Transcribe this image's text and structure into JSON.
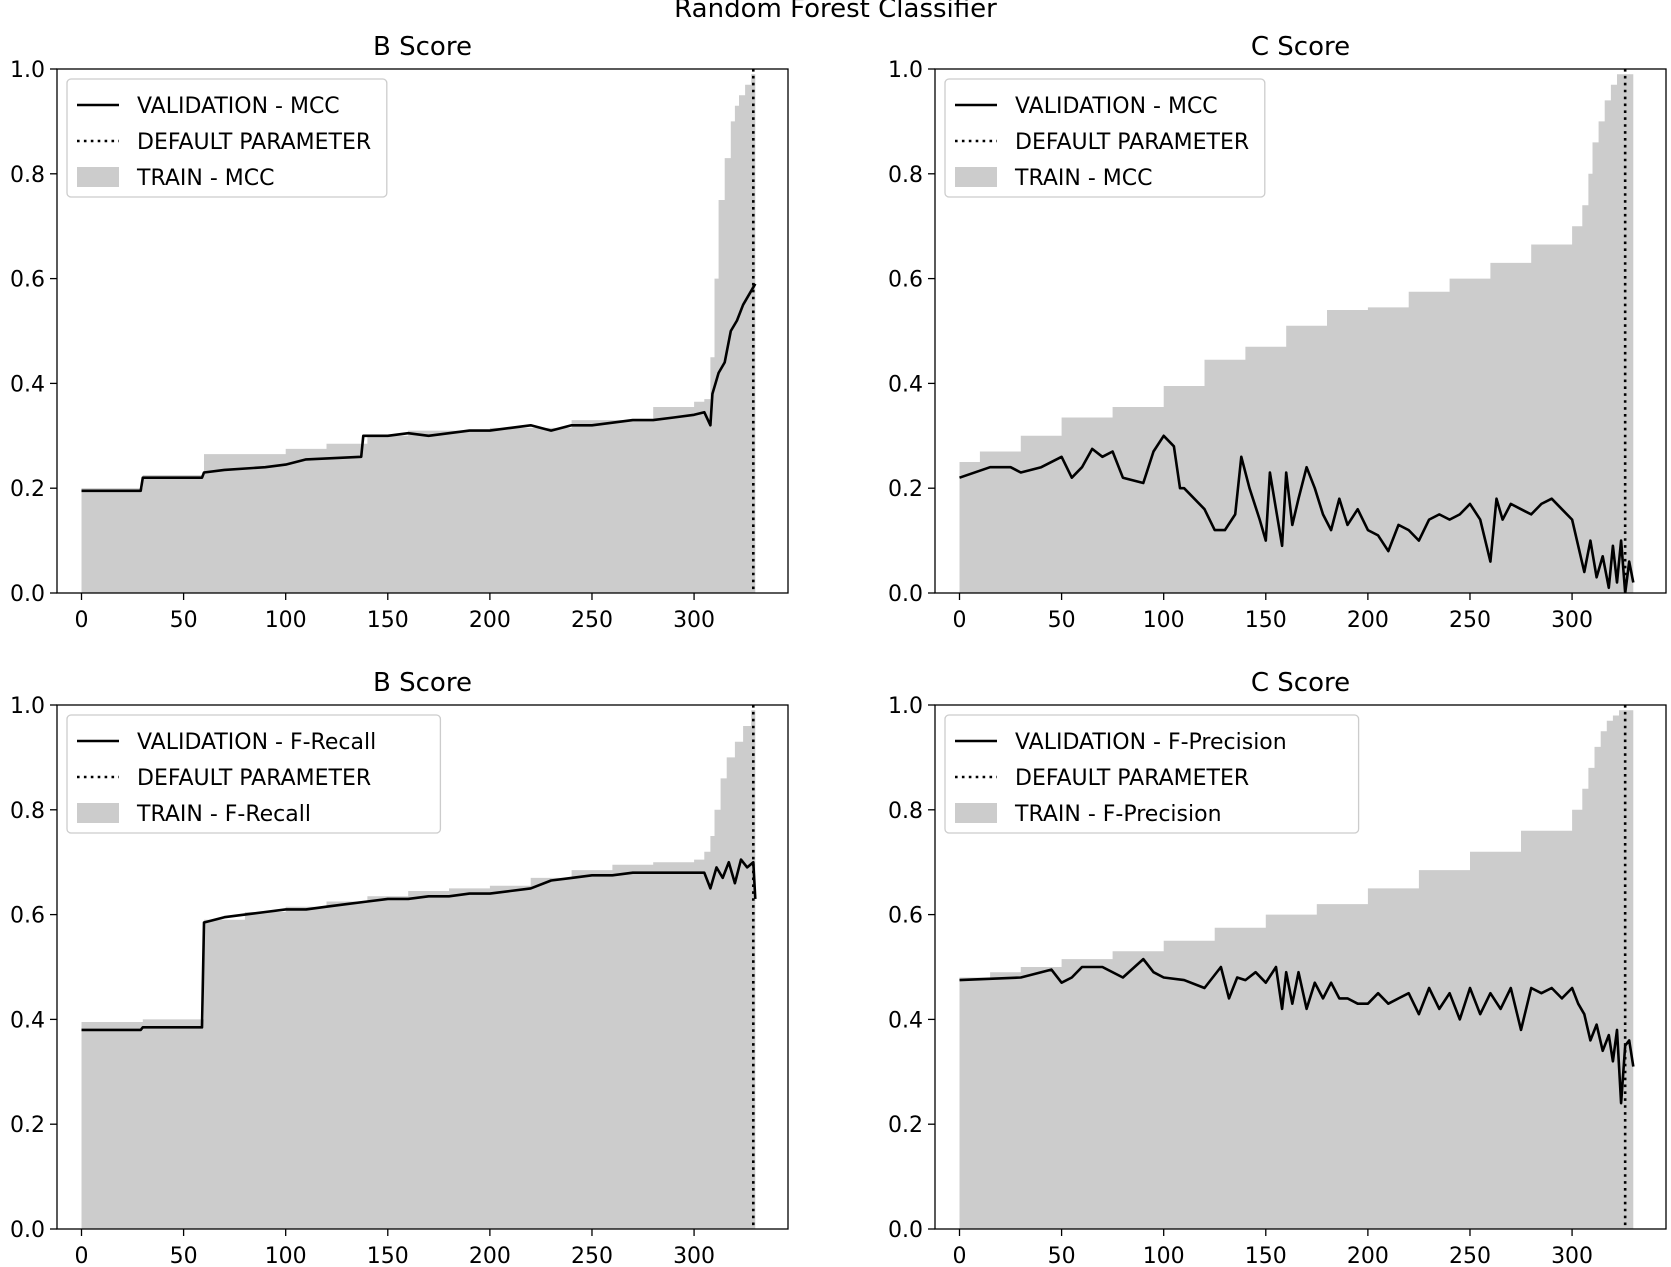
{
  "figure": {
    "suptitle": "Random Forest Classifier"
  },
  "colors": {
    "validation_line": "#000000",
    "default_line": "#000000",
    "train_fill": "#cccccc"
  },
  "chart_data": [
    {
      "type": "line",
      "title": "B Score",
      "xlabel": "",
      "ylabel": "",
      "xlim": [
        -12,
        346
      ],
      "ylim": [
        0,
        1.0
      ],
      "xticks": [
        "0",
        "50",
        "100",
        "150",
        "200",
        "250",
        "300"
      ],
      "yticks": [
        "0.0",
        "0.2",
        "0.4",
        "0.6",
        "0.8",
        "1.0"
      ],
      "legend": {
        "position": "top-left",
        "entries": [
          "VALIDATION - MCC",
          "DEFAULT PARAMETER",
          "TRAIN - MCC"
        ]
      },
      "default_parameter_x": 329,
      "series": [
        {
          "name": "TRAIN - MCC",
          "kind": "area",
          "x": [
            0,
            29,
            30,
            59,
            60,
            100,
            120,
            140,
            160,
            200,
            240,
            280,
            300,
            305,
            308,
            310,
            312,
            315,
            318,
            320,
            322,
            325,
            328,
            330
          ],
          "y": [
            0.2,
            0.2,
            0.225,
            0.225,
            0.265,
            0.275,
            0.285,
            0.3,
            0.31,
            0.315,
            0.33,
            0.355,
            0.365,
            0.37,
            0.45,
            0.6,
            0.75,
            0.83,
            0.9,
            0.93,
            0.95,
            0.97,
            0.99,
            0.99
          ]
        },
        {
          "name": "VALIDATION - MCC",
          "kind": "line",
          "x": [
            0,
            29,
            30,
            59,
            60,
            70,
            90,
            100,
            110,
            137,
            138,
            150,
            160,
            170,
            180,
            190,
            200,
            210,
            220,
            230,
            240,
            250,
            260,
            270,
            280,
            290,
            300,
            305,
            308,
            309,
            312,
            315,
            318,
            321,
            324,
            327,
            330
          ],
          "y": [
            0.195,
            0.195,
            0.22,
            0.22,
            0.23,
            0.235,
            0.24,
            0.245,
            0.255,
            0.26,
            0.3,
            0.3,
            0.305,
            0.3,
            0.305,
            0.31,
            0.31,
            0.315,
            0.32,
            0.31,
            0.32,
            0.32,
            0.325,
            0.33,
            0.33,
            0.335,
            0.34,
            0.345,
            0.32,
            0.38,
            0.42,
            0.44,
            0.5,
            0.52,
            0.55,
            0.57,
            0.59
          ]
        }
      ]
    },
    {
      "type": "line",
      "title": "C Score",
      "xlabel": "",
      "ylabel": "",
      "xlim": [
        -12,
        346
      ],
      "ylim": [
        0,
        1.0
      ],
      "xticks": [
        "0",
        "50",
        "100",
        "150",
        "200",
        "250",
        "300"
      ],
      "yticks": [
        "0.0",
        "0.2",
        "0.4",
        "0.6",
        "0.8",
        "1.0"
      ],
      "legend": {
        "position": "top-left",
        "entries": [
          "VALIDATION - MCC",
          "DEFAULT PARAMETER",
          "TRAIN - MCC"
        ]
      },
      "default_parameter_x": 326,
      "series": [
        {
          "name": "TRAIN - MCC",
          "kind": "area",
          "x": [
            0,
            10,
            30,
            50,
            75,
            100,
            120,
            140,
            160,
            180,
            200,
            220,
            240,
            260,
            280,
            300,
            305,
            308,
            310,
            313,
            316,
            319,
            322,
            325,
            328,
            330
          ],
          "y": [
            0.25,
            0.27,
            0.3,
            0.335,
            0.355,
            0.395,
            0.445,
            0.47,
            0.51,
            0.54,
            0.545,
            0.575,
            0.6,
            0.63,
            0.665,
            0.7,
            0.74,
            0.8,
            0.86,
            0.9,
            0.94,
            0.97,
            0.99,
            0.99,
            0.99,
            0.99
          ]
        },
        {
          "name": "VALIDATION - MCC",
          "kind": "line",
          "x": [
            0,
            15,
            25,
            30,
            40,
            50,
            55,
            60,
            65,
            70,
            75,
            80,
            90,
            95,
            100,
            105,
            108,
            110,
            115,
            120,
            125,
            130,
            135,
            138,
            142,
            147,
            150,
            152,
            155,
            158,
            160,
            163,
            166,
            170,
            174,
            178,
            182,
            186,
            190,
            195,
            200,
            205,
            210,
            215,
            220,
            225,
            230,
            235,
            240,
            245,
            250,
            255,
            260,
            263,
            266,
            270,
            275,
            280,
            285,
            290,
            295,
            300,
            303,
            306,
            309,
            312,
            315,
            318,
            320,
            322,
            324,
            326,
            328,
            330
          ],
          "y": [
            0.22,
            0.24,
            0.24,
            0.23,
            0.24,
            0.26,
            0.22,
            0.24,
            0.275,
            0.26,
            0.27,
            0.22,
            0.21,
            0.27,
            0.3,
            0.28,
            0.2,
            0.2,
            0.18,
            0.16,
            0.12,
            0.12,
            0.15,
            0.26,
            0.2,
            0.14,
            0.1,
            0.23,
            0.16,
            0.09,
            0.23,
            0.13,
            0.18,
            0.24,
            0.2,
            0.15,
            0.12,
            0.18,
            0.13,
            0.16,
            0.12,
            0.11,
            0.08,
            0.13,
            0.12,
            0.1,
            0.14,
            0.15,
            0.14,
            0.15,
            0.17,
            0.14,
            0.06,
            0.18,
            0.14,
            0.17,
            0.16,
            0.15,
            0.17,
            0.18,
            0.16,
            0.14,
            0.09,
            0.04,
            0.1,
            0.03,
            0.07,
            0.01,
            0.09,
            0.02,
            0.1,
            0.0,
            0.06,
            0.02
          ]
        }
      ]
    },
    {
      "type": "line",
      "title": "B Score",
      "xlabel": "",
      "ylabel": "",
      "xlim": [
        -12,
        346
      ],
      "ylim": [
        0,
        1.0
      ],
      "xticks": [
        "0",
        "50",
        "100",
        "150",
        "200",
        "250",
        "300"
      ],
      "yticks": [
        "0.0",
        "0.2",
        "0.4",
        "0.6",
        "0.8",
        "1.0"
      ],
      "legend": {
        "position": "top-left",
        "entries": [
          "VALIDATION - F-Recall",
          "DEFAULT PARAMETER",
          "TRAIN - F-Recall"
        ]
      },
      "default_parameter_x": 329,
      "series": [
        {
          "name": "TRAIN - F-Recall",
          "kind": "area",
          "x": [
            0,
            29,
            30,
            59,
            60,
            80,
            100,
            120,
            140,
            160,
            180,
            200,
            220,
            240,
            260,
            280,
            300,
            305,
            308,
            310,
            313,
            316,
            320,
            324,
            328,
            330
          ],
          "y": [
            0.395,
            0.395,
            0.4,
            0.4,
            0.59,
            0.605,
            0.615,
            0.625,
            0.635,
            0.645,
            0.65,
            0.655,
            0.67,
            0.685,
            0.695,
            0.7,
            0.705,
            0.72,
            0.75,
            0.8,
            0.86,
            0.9,
            0.93,
            0.96,
            0.99,
            0.99
          ]
        },
        {
          "name": "VALIDATION - F-Recall",
          "kind": "line",
          "x": [
            0,
            29,
            30,
            59,
            60,
            70,
            80,
            90,
            100,
            110,
            120,
            130,
            140,
            150,
            160,
            170,
            180,
            190,
            200,
            210,
            220,
            230,
            240,
            250,
            260,
            270,
            280,
            290,
            300,
            305,
            308,
            311,
            314,
            317,
            320,
            323,
            326,
            329,
            330
          ],
          "y": [
            0.38,
            0.38,
            0.385,
            0.385,
            0.585,
            0.595,
            0.6,
            0.605,
            0.61,
            0.61,
            0.615,
            0.62,
            0.625,
            0.63,
            0.63,
            0.635,
            0.635,
            0.64,
            0.64,
            0.645,
            0.65,
            0.665,
            0.67,
            0.675,
            0.675,
            0.68,
            0.68,
            0.68,
            0.68,
            0.68,
            0.65,
            0.69,
            0.67,
            0.7,
            0.66,
            0.705,
            0.69,
            0.7,
            0.63
          ]
        }
      ]
    },
    {
      "type": "line",
      "title": "C Score",
      "xlabel": "",
      "ylabel": "",
      "xlim": [
        -12,
        346
      ],
      "ylim": [
        0,
        1.0
      ],
      "xticks": [
        "0",
        "50",
        "100",
        "150",
        "200",
        "250",
        "300"
      ],
      "yticks": [
        "0.0",
        "0.2",
        "0.4",
        "0.6",
        "0.8",
        "1.0"
      ],
      "legend": {
        "position": "top-left",
        "entries": [
          "VALIDATION - F-Precision",
          "DEFAULT PARAMETER",
          "TRAIN - F-Precision"
        ]
      },
      "default_parameter_x": 326,
      "series": [
        {
          "name": "TRAIN - F-Precision",
          "kind": "area",
          "x": [
            0,
            15,
            30,
            50,
            75,
            100,
            125,
            150,
            175,
            200,
            225,
            250,
            275,
            300,
            305,
            308,
            311,
            314,
            317,
            320,
            323,
            326,
            330
          ],
          "y": [
            0.48,
            0.49,
            0.5,
            0.515,
            0.53,
            0.55,
            0.575,
            0.6,
            0.62,
            0.65,
            0.685,
            0.72,
            0.76,
            0.8,
            0.84,
            0.88,
            0.92,
            0.95,
            0.97,
            0.98,
            0.99,
            0.99,
            0.99
          ]
        },
        {
          "name": "VALIDATION - F-Precision",
          "kind": "line",
          "x": [
            0,
            30,
            40,
            45,
            50,
            55,
            60,
            70,
            80,
            90,
            95,
            100,
            110,
            120,
            128,
            132,
            136,
            140,
            145,
            150,
            155,
            158,
            160,
            163,
            166,
            170,
            174,
            178,
            182,
            186,
            190,
            195,
            200,
            205,
            210,
            215,
            220,
            225,
            230,
            235,
            240,
            245,
            250,
            255,
            260,
            265,
            270,
            275,
            280,
            285,
            290,
            295,
            300,
            303,
            306,
            309,
            312,
            315,
            318,
            320,
            322,
            324,
            326,
            328,
            330
          ],
          "y": [
            0.475,
            0.48,
            0.49,
            0.495,
            0.47,
            0.48,
            0.5,
            0.5,
            0.48,
            0.515,
            0.49,
            0.48,
            0.475,
            0.46,
            0.5,
            0.44,
            0.48,
            0.475,
            0.49,
            0.47,
            0.5,
            0.42,
            0.49,
            0.43,
            0.49,
            0.42,
            0.47,
            0.44,
            0.47,
            0.44,
            0.44,
            0.43,
            0.43,
            0.45,
            0.43,
            0.44,
            0.45,
            0.41,
            0.46,
            0.42,
            0.45,
            0.4,
            0.46,
            0.41,
            0.45,
            0.42,
            0.46,
            0.38,
            0.46,
            0.45,
            0.46,
            0.44,
            0.46,
            0.43,
            0.41,
            0.36,
            0.39,
            0.34,
            0.37,
            0.32,
            0.38,
            0.24,
            0.35,
            0.36,
            0.31
          ]
        }
      ]
    }
  ]
}
